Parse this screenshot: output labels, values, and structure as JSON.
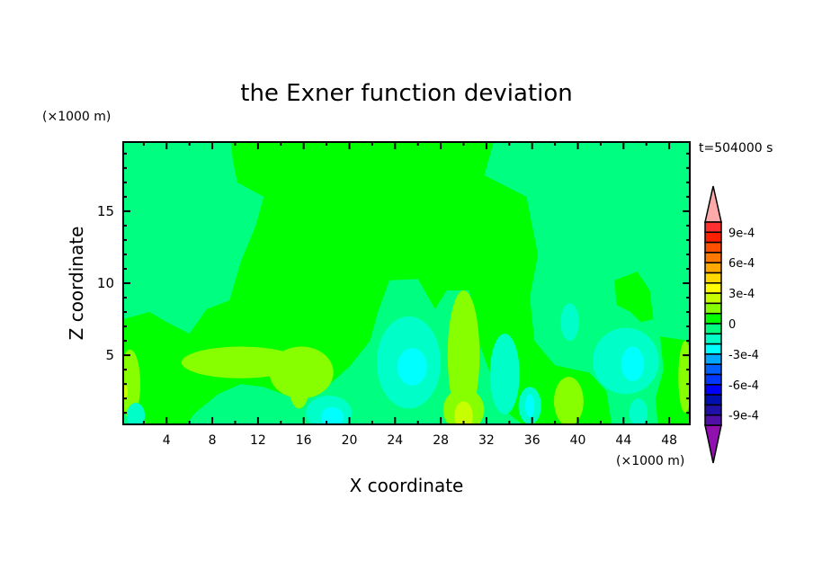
{
  "chart_data": {
    "type": "heatmap",
    "subtype": "filled-contour",
    "title": "the Exner function deviation",
    "xlabel": "X coordinate",
    "ylabel": "Z coordinate",
    "x_unit": "(×1000 m)",
    "y_unit": "(×1000 m)",
    "time_label": "t=504000 s",
    "xlim": [
      0.2,
      49.8
    ],
    "ylim": [
      0.2,
      19.8
    ],
    "x_ticks": [
      4,
      8,
      12,
      16,
      20,
      24,
      28,
      32,
      36,
      40,
      44,
      48
    ],
    "y_ticks": [
      5,
      10,
      15
    ],
    "colorbar": {
      "levels": [
        0.001,
        0.0009,
        0.0008,
        0.0007,
        0.0006,
        0.0005,
        0.0004,
        0.0003,
        0.0002,
        0.0001,
        0,
        -0.0001,
        -0.0002,
        -0.0003,
        -0.0004,
        -0.0005,
        -0.0006,
        -0.0007,
        -0.0008,
        -0.0009,
        -0.001
      ],
      "colors": [
        "#ff3030",
        "#ff2000",
        "#ff5000",
        "#ff7800",
        "#ffa800",
        "#ffd800",
        "#ffff00",
        "#c8ff00",
        "#88ff00",
        "#00ff00",
        "#00ff80",
        "#00ffc8",
        "#00ffff",
        "#00a8ff",
        "#0060ff",
        "#0038ff",
        "#0000ff",
        "#0010b0",
        "#2010a8",
        "#5010a8"
      ],
      "over_color": "#ffaaaa",
      "under_color": "#9010b0",
      "labels": [
        {
          "level": 0.0009,
          "text": "9e-4"
        },
        {
          "level": 0.0006,
          "text": "6e-4"
        },
        {
          "level": 0.0003,
          "text": "3e-4"
        },
        {
          "level": 0,
          "text": "0"
        },
        {
          "level": -0.0003,
          "text": "-3e-4"
        },
        {
          "level": -0.0006,
          "text": "-6e-4"
        },
        {
          "level": -0.0009,
          "text": "-9e-4"
        }
      ]
    },
    "background_value": -5e-05,
    "regions": [
      {
        "value": 5e-05,
        "points": [
          [
            9.6,
            20
          ],
          [
            32.7,
            20
          ],
          [
            31.8,
            17.5
          ],
          [
            35.5,
            16
          ],
          [
            36.5,
            12
          ],
          [
            35.8,
            9
          ],
          [
            36.2,
            6
          ],
          [
            38,
            4.3
          ],
          [
            41,
            3.8
          ],
          [
            42.5,
            2.5
          ],
          [
            43,
            0
          ],
          [
            35.5,
            0
          ],
          [
            33.5,
            1.2
          ],
          [
            31.5,
            5.5
          ],
          [
            30.5,
            9.5
          ],
          [
            28.5,
            9.5
          ],
          [
            27.5,
            8.2
          ],
          [
            26,
            10.3
          ],
          [
            23.5,
            10.2
          ],
          [
            22.5,
            8
          ],
          [
            21.8,
            6
          ],
          [
            20,
            4.2
          ],
          [
            18,
            2.8
          ],
          [
            16,
            2.5
          ],
          [
            14.5,
            2.2
          ],
          [
            12.5,
            2.8
          ],
          [
            10.5,
            3
          ],
          [
            8.5,
            2.3
          ],
          [
            6.5,
            1
          ],
          [
            5.5,
            0
          ],
          [
            0.8,
            0
          ],
          [
            0.2,
            2
          ],
          [
            0.2,
            7.5
          ],
          [
            2.5,
            8
          ],
          [
            4,
            7.3
          ],
          [
            6,
            6.5
          ],
          [
            7.5,
            8.2
          ],
          [
            9.5,
            8.8
          ],
          [
            10.5,
            11.5
          ],
          [
            11.8,
            14
          ],
          [
            12.5,
            16
          ],
          [
            10.2,
            17
          ],
          [
            9.8,
            18.5
          ]
        ]
      },
      {
        "value": 5e-05,
        "points": [
          [
            43.2,
            10.2
          ],
          [
            45.2,
            10.8
          ],
          [
            46.3,
            9.5
          ],
          [
            46.6,
            7.5
          ],
          [
            45.5,
            7.3
          ],
          [
            44.6,
            8
          ],
          [
            43.4,
            8.5
          ]
        ]
      },
      {
        "value": 5e-05,
        "points": [
          [
            47.2,
            6.3
          ],
          [
            49.8,
            6
          ],
          [
            49.8,
            0.2
          ],
          [
            47,
            0.2
          ],
          [
            46.8,
            2
          ],
          [
            47.5,
            4
          ]
        ]
      },
      {
        "value": 5e-05,
        "points": [
          [
            39,
            1
          ],
          [
            40.5,
            0.2
          ],
          [
            37,
            0.2
          ]
        ]
      }
    ],
    "blobs": [
      {
        "x": 10.5,
        "z": 4.5,
        "rx": 5.2,
        "rz": 1.1,
        "value": 0.00015
      },
      {
        "x": 15.8,
        "z": 3.8,
        "rx": 2.8,
        "rz": 1.8,
        "value": 0.00015
      },
      {
        "x": 15.6,
        "z": 2.5,
        "rx": 0.8,
        "rz": 1.2,
        "value": 0.00015
      },
      {
        "x": 30,
        "z": 5,
        "rx": 1.4,
        "rz": 4.5,
        "value": 0.00015
      },
      {
        "x": 30,
        "z": 1.2,
        "rx": 1.8,
        "rz": 1.5,
        "value": 0.00015
      },
      {
        "x": 39.2,
        "z": 1.8,
        "rx": 1.3,
        "rz": 1.7,
        "value": 0.00015
      },
      {
        "x": 0.8,
        "z": 3,
        "rx": 0.9,
        "rz": 2.4,
        "value": 0.00015
      },
      {
        "x": 49.4,
        "z": 3.5,
        "rx": 0.6,
        "rz": 2.5,
        "value": 0.00015
      },
      {
        "x": 30,
        "z": 0.8,
        "rx": 0.8,
        "rz": 1,
        "value": 0.00025
      },
      {
        "x": 0.3,
        "z": 2.5,
        "rx": 0.3,
        "rz": 0.5,
        "value": 0.00025
      },
      {
        "x": 25.2,
        "z": 4.5,
        "rx": 2.8,
        "rz": 3.2,
        "value": -0.00015
      },
      {
        "x": 33.6,
        "z": 3.7,
        "rx": 1.3,
        "rz": 2.8,
        "value": -0.00015
      },
      {
        "x": 44.2,
        "z": 4.6,
        "rx": 2.9,
        "rz": 2.3,
        "value": -0.00015
      },
      {
        "x": 39.3,
        "z": 7.3,
        "rx": 0.8,
        "rz": 1.3,
        "value": -0.00015
      },
      {
        "x": 18.2,
        "z": 1,
        "rx": 2,
        "rz": 1.2,
        "value": -0.00015
      },
      {
        "x": 35.8,
        "z": 1.5,
        "rx": 1,
        "rz": 1.3,
        "value": -0.00015
      },
      {
        "x": 45.3,
        "z": 1,
        "rx": 0.8,
        "rz": 1,
        "value": -0.00015
      },
      {
        "x": 1.3,
        "z": 0.8,
        "rx": 0.8,
        "rz": 0.9,
        "value": -0.00015
      },
      {
        "x": 25.5,
        "z": 4.2,
        "rx": 1.3,
        "rz": 1.3,
        "value": -0.00025
      },
      {
        "x": 44.8,
        "z": 4.4,
        "rx": 1,
        "rz": 1.2,
        "value": -0.00025
      },
      {
        "x": 18.5,
        "z": 0.7,
        "rx": 1,
        "rz": 0.7,
        "value": -0.00025
      },
      {
        "x": 35.8,
        "z": 1.5,
        "rx": 0.4,
        "rz": 0.8,
        "value": -0.00025
      }
    ]
  }
}
